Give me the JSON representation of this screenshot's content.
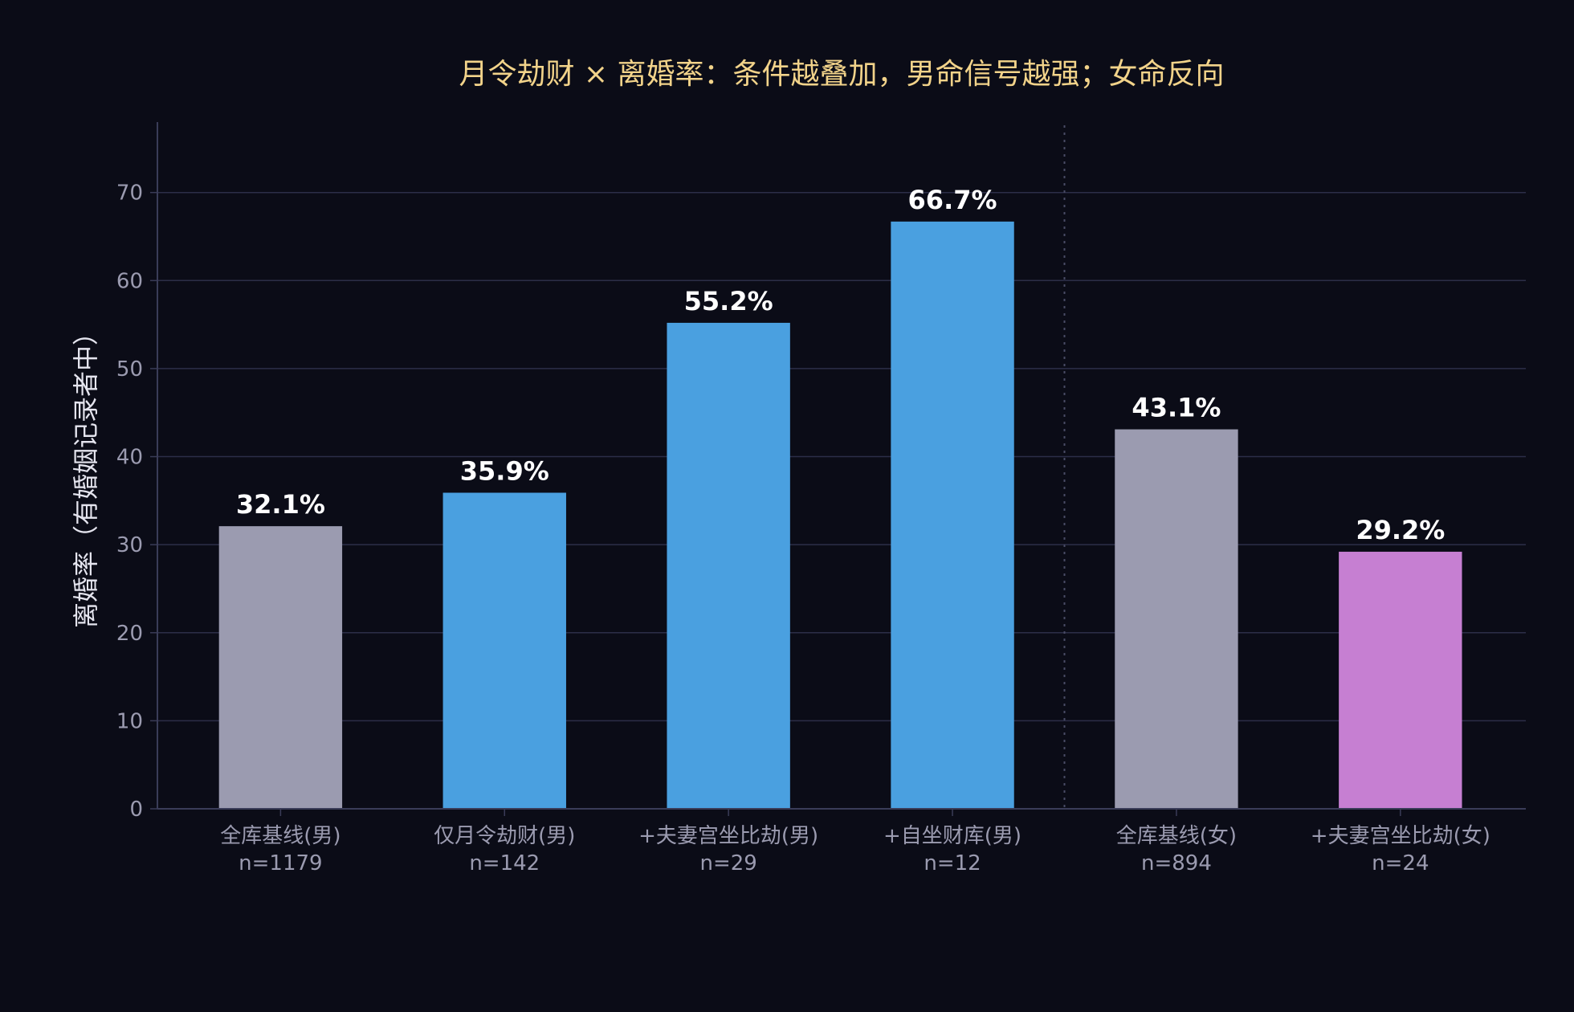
{
  "chart_data": {
    "type": "bar",
    "title": "月令劫财 × 离婚率：条件越叠加，男命信号越强；女命反向",
    "ylabel": "离婚率（有婚姻记录者中）",
    "xlabel": "",
    "ylim": [
      0,
      78
    ],
    "yticks": [
      0,
      10,
      20,
      30,
      40,
      50,
      60,
      70
    ],
    "grid": "horizontal",
    "divider_after_index": 3,
    "categories": [
      "全库基线(男)",
      "仅月令劫财(男)",
      "+夫妻宫坐比劫(男)",
      "+自坐财库(男)",
      "全库基线(女)",
      "+夫妻宫坐比劫(女)"
    ],
    "sample_sizes": [
      "n=1179",
      "n=142",
      "n=29",
      "n=12",
      "n=894",
      "n=24"
    ],
    "values": [
      32.1,
      35.9,
      55.2,
      66.7,
      43.1,
      29.2
    ],
    "value_labels": [
      "32.1%",
      "35.9%",
      "55.2%",
      "66.7%",
      "43.1%",
      "29.2%"
    ],
    "colors": [
      "#9b9bb0",
      "#4aa0e0",
      "#4aa0e0",
      "#4aa0e0",
      "#9b9bb0",
      "#c67fd2"
    ],
    "title_color": "#f2d38a",
    "text_color": "#9b9bb0",
    "grid_color": "#2c2e48",
    "axis_color": "#3a3c58"
  }
}
